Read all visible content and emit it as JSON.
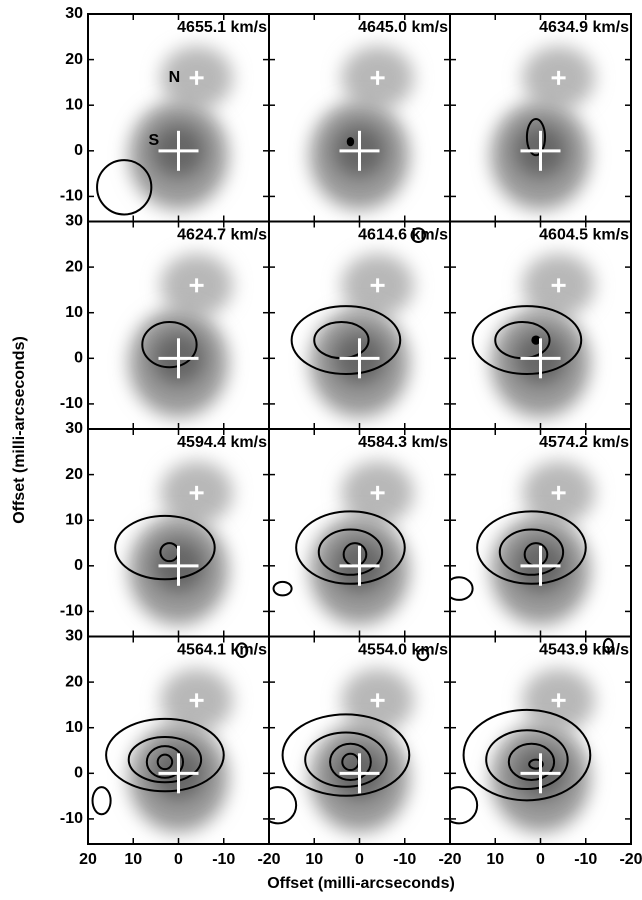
{
  "chart_data": {
    "type": "channel-maps",
    "xlabel": "Offset (milli-arcseconds)",
    "ylabel": "Offset (milli-arcseconds)",
    "xlim": [
      20,
      -20
    ],
    "ylim": [
      -15.5,
      30
    ],
    "xticks": [
      20,
      10,
      0,
      -10,
      -20
    ],
    "yticks": [
      -10,
      0,
      10,
      20,
      30
    ],
    "sources": [
      {
        "name": "N",
        "x": -4,
        "y": 16
      },
      {
        "name": "S",
        "x": 0,
        "y": 0
      }
    ],
    "panels": [
      {
        "label": "4655.1 km/s"
      },
      {
        "label": "4645.0 km/s"
      },
      {
        "label": "4634.9 km/s"
      },
      {
        "label": "4624.7 km/s"
      },
      {
        "label": "4614.6 km/s"
      },
      {
        "label": "4604.5 km/s"
      },
      {
        "label": "4594.4 km/s"
      },
      {
        "label": "4584.3 km/s"
      },
      {
        "label": "4574.2 km/s"
      },
      {
        "label": "4564.1 km/s"
      },
      {
        "label": "4554.0 km/s"
      },
      {
        "label": "4543.9 km/s"
      }
    ]
  }
}
